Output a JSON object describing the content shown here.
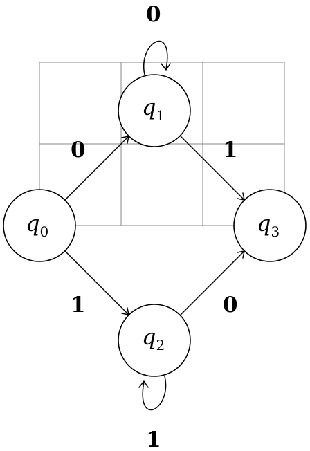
{
  "states": [
    {
      "id": "q0",
      "letter": "q",
      "index": "0"
    },
    {
      "id": "q1",
      "letter": "q",
      "index": "1"
    },
    {
      "id": "q2",
      "letter": "q",
      "index": "2"
    },
    {
      "id": "q3",
      "letter": "q",
      "index": "3"
    }
  ],
  "transitions": [
    {
      "from": "q0",
      "to": "q1",
      "symbol": "0"
    },
    {
      "from": "q0",
      "to": "q2",
      "symbol": "1"
    },
    {
      "from": "q1",
      "to": "q3",
      "symbol": "1"
    },
    {
      "from": "q2",
      "to": "q3",
      "symbol": "0"
    },
    {
      "from": "q1",
      "to": "q1",
      "symbol": "0"
    },
    {
      "from": "q2",
      "to": "q2",
      "symbol": "1"
    }
  ]
}
